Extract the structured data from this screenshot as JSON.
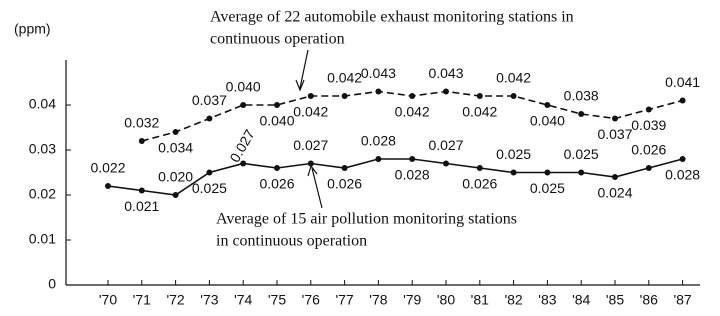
{
  "chart_data": {
    "type": "line",
    "y_label": "(ppm)",
    "categories": [
      "'70",
      "'71",
      "'72",
      "'73",
      "'74",
      "'75",
      "'76",
      "'77",
      "'78",
      "'79",
      "'80",
      "'81",
      "'82",
      "'83",
      "'84",
      "'85",
      "'86",
      "'87"
    ],
    "ylim": [
      0,
      0.05
    ],
    "yticks": [
      0,
      0.01,
      0.02,
      0.03,
      0.04
    ],
    "series": [
      {
        "color": "#111111",
        "dashed": true,
        "values": [
          null,
          0.032,
          0.034,
          0.037,
          0.04,
          0.04,
          0.042,
          0.042,
          0.043,
          0.042,
          0.043,
          0.042,
          0.042,
          0.04,
          0.038,
          0.037,
          0.039,
          0.041
        ],
        "value_labels": [
          null,
          "0.032",
          "0.034",
          "0.037",
          "0.040",
          "0.040",
          "0.042",
          "0.042",
          "0.043",
          "0.042",
          "0.043",
          "0.042",
          "0.042",
          "0.040",
          "0.038",
          "0.037",
          "0.039",
          "0.041"
        ]
      },
      {
        "color": "#111111",
        "dashed": false,
        "values": [
          0.022,
          0.021,
          0.02,
          0.025,
          0.027,
          0.026,
          0.027,
          0.026,
          0.028,
          0.028,
          0.027,
          0.026,
          0.025,
          0.025,
          0.025,
          0.024,
          0.026,
          0.028
        ],
        "value_labels": [
          "0.022",
          "0.021",
          "0.020",
          "0.025",
          "0.027",
          "0.026",
          "0.027",
          "0.026",
          "0.028",
          "0.028",
          "0.027",
          "0.026",
          "0.025",
          "0.025",
          "0.025",
          "0.024",
          "0.026",
          "0.028"
        ]
      }
    ],
    "annotations": [
      {
        "lines": [
          "Average of 22 automobile exhaust monitoring stations in",
          "continuous operation"
        ]
      },
      {
        "lines": [
          "Average of 15 air pollution monitoring stations",
          "in continuous operation"
        ]
      }
    ]
  }
}
